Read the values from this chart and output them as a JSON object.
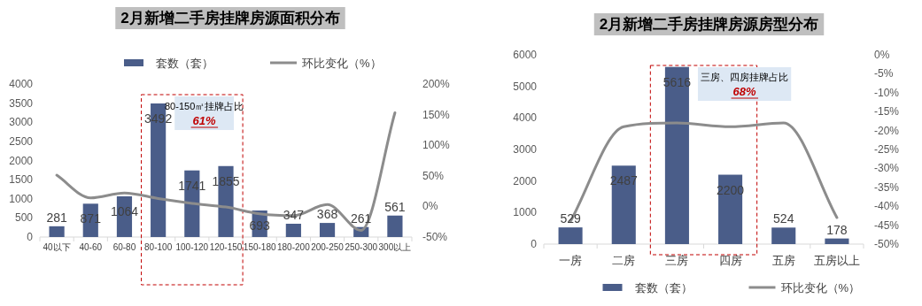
{
  "chart_data": [
    {
      "type": "bar",
      "title": "2月新增二手房挂牌房源面积分布",
      "categories": [
        "40以下",
        "40-60",
        "60-80",
        "80-100",
        "100-120",
        "120-150",
        "150-180",
        "180-200",
        "200-250",
        "250-300",
        "300以上"
      ],
      "series": [
        {
          "name": "套数（套）",
          "color": "#4a5d89",
          "values": [
            281,
            871,
            1064,
            3492,
            1741,
            1855,
            693,
            347,
            368,
            261,
            561
          ],
          "value_labels": [
            "281",
            "871",
            "1064",
            "3492",
            "1741",
            "1855",
            "693",
            "347",
            "368",
            "261",
            "561"
          ]
        },
        {
          "name": "环比变化（%）",
          "type": "line",
          "axis": "y2",
          "color": "#8c8c8c",
          "values": [
            51,
            14,
            22,
            13,
            5,
            -1,
            -12,
            -15,
            3,
            -39,
            153
          ]
        }
      ],
      "ylim": [
        0,
        4000
      ],
      "yticks": [
        0,
        500,
        1000,
        1500,
        2000,
        2500,
        3000,
        3500,
        4000
      ],
      "y2lim": [
        -50,
        200
      ],
      "y2ticks": [
        {
          "value": -50,
          "label": "-50%"
        },
        {
          "value": 0,
          "label": "0%"
        },
        {
          "value": 50,
          "label": "50%"
        },
        {
          "value": 100,
          "label": "100%"
        },
        {
          "value": 150,
          "label": "150%"
        },
        {
          "value": 200,
          "label": "200%"
        }
      ],
      "legend": "top",
      "annotations": [
        "80-150㎡挂牌占比",
        "61%"
      ]
    },
    {
      "type": "bar",
      "title": "2月新增二手房挂牌房源房型分布",
      "categories": [
        "一房",
        "二房",
        "三房",
        "四房",
        "五房",
        "五房以上"
      ],
      "series": [
        {
          "name": "套数（套）",
          "color": "#4a5d89",
          "values": [
            529,
            2487,
            5616,
            2200,
            524,
            178
          ],
          "value_labels": [
            "529",
            "2487",
            "5616",
            "2200",
            "524",
            "178"
          ]
        },
        {
          "name": "环比变化（%）",
          "type": "line",
          "axis": "y2",
          "color": "#8c8c8c",
          "values": [
            -44,
            -19,
            -18,
            -19,
            -18,
            -43
          ]
        }
      ],
      "ylim": [
        0,
        6000
      ],
      "yticks": [
        0,
        1000,
        2000,
        3000,
        4000,
        5000,
        6000
      ],
      "y2lim": [
        -50,
        0
      ],
      "y2ticks": [
        {
          "value": -50,
          "label": "-50%"
        },
        {
          "value": -45,
          "label": "-45%"
        },
        {
          "value": -40,
          "label": "-40%"
        },
        {
          "value": -35,
          "label": "-35%"
        },
        {
          "value": -30,
          "label": "-30%"
        },
        {
          "value": -25,
          "label": "-25%"
        },
        {
          "value": -20,
          "label": "-20%"
        },
        {
          "value": -15,
          "label": "-15%"
        },
        {
          "value": -10,
          "label": "-10%"
        },
        {
          "value": -5,
          "label": "-5%"
        },
        {
          "value": 0,
          "label": "0%"
        }
      ],
      "legend": "bottom",
      "annotations": [
        "三房、四房挂牌占比",
        "68%"
      ]
    }
  ]
}
